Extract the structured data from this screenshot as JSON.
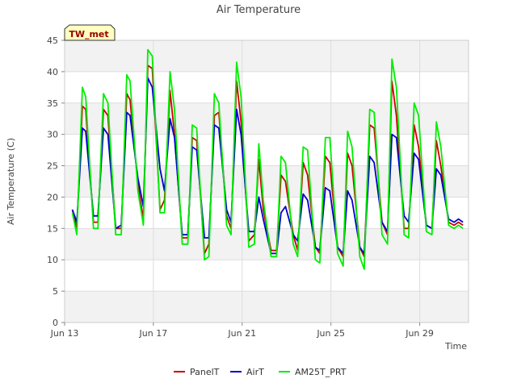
{
  "chart_data": {
    "type": "line",
    "title": "Air Temperature",
    "badge": "TW_met",
    "xlabel": "Time",
    "ylabel": "Air Temperature (C)",
    "ylim": [
      0,
      45
    ],
    "yticks": [
      0,
      5,
      10,
      15,
      20,
      25,
      30,
      35,
      40,
      45
    ],
    "xlim": [
      13.0,
      31.2
    ],
    "xticks": [
      {
        "label": "Jun 13",
        "day": 13
      },
      {
        "label": "Jun 17",
        "day": 17
      },
      {
        "label": "Jun 21",
        "day": 21
      },
      {
        "label": "Jun 25",
        "day": 25
      },
      {
        "label": "Jun 29",
        "day": 29
      }
    ],
    "grid": true,
    "legend_position": "bottom",
    "series": [
      {
        "name": "PanelT",
        "color": "#cc0000",
        "x": [
          13.35,
          13.55,
          13.8,
          13.95,
          14.3,
          14.5,
          14.75,
          14.95,
          15.3,
          15.55,
          15.8,
          15.95,
          16.3,
          16.55,
          16.75,
          16.95,
          17.3,
          17.5,
          17.75,
          17.95,
          18.3,
          18.55,
          18.75,
          18.95,
          19.3,
          19.5,
          19.75,
          19.95,
          20.3,
          20.5,
          20.75,
          20.95,
          21.3,
          21.55,
          21.75,
          21.95,
          22.3,
          22.55,
          22.75,
          22.95,
          23.3,
          23.5,
          23.75,
          23.95,
          24.3,
          24.5,
          24.75,
          24.95,
          25.3,
          25.55,
          25.75,
          25.95,
          26.3,
          26.5,
          26.75,
          26.95,
          27.3,
          27.55,
          27.75,
          27.95,
          28.3,
          28.5,
          28.75,
          28.95,
          29.3,
          29.55,
          29.75,
          29.95,
          30.3,
          30.55,
          30.75,
          30.95
        ],
        "y": [
          18.0,
          15.0,
          34.5,
          34.0,
          16.0,
          16.0,
          34.0,
          33.0,
          15.0,
          15.0,
          36.5,
          35.5,
          22.0,
          16.5,
          41.0,
          40.5,
          18.0,
          19.5,
          37.0,
          30.0,
          13.5,
          13.5,
          29.5,
          29.0,
          11.0,
          12.5,
          33.0,
          33.5,
          17.0,
          15.0,
          38.5,
          32.0,
          13.0,
          14.0,
          26.0,
          18.0,
          11.5,
          11.5,
          23.5,
          22.5,
          14.0,
          11.5,
          25.5,
          23.5,
          12.0,
          11.0,
          26.5,
          25.5,
          12.0,
          10.5,
          27.0,
          25.0,
          12.0,
          10.5,
          31.5,
          31.0,
          16.0,
          14.0,
          38.5,
          33.0,
          15.0,
          15.0,
          31.5,
          28.0,
          15.5,
          15.0,
          29.0,
          25.0,
          16.0,
          15.5,
          16.0,
          15.5
        ]
      },
      {
        "name": "AirT",
        "color": "#0000cc",
        "x": [
          13.35,
          13.55,
          13.8,
          13.95,
          14.3,
          14.5,
          14.75,
          14.95,
          15.3,
          15.55,
          15.8,
          15.95,
          16.3,
          16.55,
          16.75,
          16.95,
          17.3,
          17.5,
          17.75,
          17.95,
          18.3,
          18.55,
          18.75,
          18.95,
          19.3,
          19.5,
          19.75,
          19.95,
          20.3,
          20.5,
          20.75,
          20.95,
          21.3,
          21.55,
          21.75,
          21.95,
          22.3,
          22.55,
          22.75,
          22.95,
          23.3,
          23.5,
          23.75,
          23.95,
          24.3,
          24.5,
          24.75,
          24.95,
          25.3,
          25.55,
          25.75,
          25.95,
          26.3,
          26.5,
          26.75,
          26.95,
          27.3,
          27.55,
          27.75,
          27.95,
          28.3,
          28.5,
          28.75,
          28.95,
          29.3,
          29.55,
          29.75,
          29.95,
          30.3,
          30.55,
          30.75,
          30.95
        ],
        "y": [
          18.0,
          16.0,
          31.0,
          30.5,
          17.0,
          17.0,
          31.0,
          30.0,
          15.0,
          15.5,
          33.5,
          33.0,
          23.0,
          18.5,
          39.0,
          37.5,
          24.5,
          21.0,
          32.5,
          29.5,
          14.0,
          14.0,
          28.0,
          27.5,
          13.5,
          13.5,
          31.5,
          31.0,
          18.0,
          16.0,
          34.0,
          30.0,
          14.5,
          14.5,
          20.0,
          16.5,
          11.0,
          11.0,
          17.5,
          18.5,
          14.0,
          13.0,
          20.5,
          19.5,
          12.0,
          11.5,
          21.5,
          21.0,
          12.0,
          11.0,
          21.0,
          19.5,
          12.0,
          11.0,
          26.5,
          25.5,
          16.0,
          14.5,
          30.0,
          29.5,
          17.0,
          16.0,
          27.0,
          26.0,
          15.5,
          15.0,
          24.5,
          23.5,
          16.5,
          16.0,
          16.5,
          16.0
        ]
      },
      {
        "name": "AM25T_PRT",
        "color": "#00ee00",
        "x": [
          13.35,
          13.55,
          13.8,
          13.95,
          14.3,
          14.5,
          14.75,
          14.95,
          15.3,
          15.55,
          15.8,
          15.95,
          16.3,
          16.55,
          16.75,
          16.95,
          17.3,
          17.5,
          17.75,
          17.95,
          18.3,
          18.55,
          18.75,
          18.95,
          19.3,
          19.5,
          19.75,
          19.95,
          20.3,
          20.5,
          20.75,
          20.95,
          21.3,
          21.55,
          21.75,
          21.95,
          22.3,
          22.55,
          22.75,
          22.95,
          23.3,
          23.5,
          23.75,
          23.95,
          24.3,
          24.5,
          24.75,
          24.95,
          25.3,
          25.55,
          25.75,
          25.95,
          26.3,
          26.5,
          26.75,
          26.95,
          27.3,
          27.55,
          27.75,
          27.95,
          28.3,
          28.5,
          28.75,
          28.95,
          29.3,
          29.55,
          29.75,
          29.95,
          30.3,
          30.55,
          30.75,
          30.95
        ],
        "y": [
          17.5,
          14.0,
          37.5,
          36.0,
          15.0,
          15.0,
          36.5,
          35.0,
          14.0,
          14.0,
          39.5,
          38.5,
          21.0,
          15.5,
          43.5,
          42.5,
          17.5,
          17.5,
          40.0,
          34.0,
          12.5,
          12.5,
          31.5,
          31.0,
          10.0,
          10.5,
          36.5,
          35.0,
          15.5,
          14.0,
          41.5,
          36.0,
          12.0,
          12.5,
          28.5,
          19.5,
          10.5,
          10.5,
          26.5,
          25.5,
          12.5,
          10.5,
          28.0,
          27.5,
          10.0,
          9.5,
          29.5,
          29.5,
          11.0,
          9.0,
          30.5,
          28.0,
          10.5,
          8.5,
          34.0,
          33.5,
          14.0,
          12.5,
          42.0,
          37.5,
          14.0,
          13.5,
          35.0,
          33.0,
          14.5,
          14.0,
          32.0,
          28.0,
          15.5,
          15.0,
          15.5,
          15.0
        ]
      }
    ]
  }
}
